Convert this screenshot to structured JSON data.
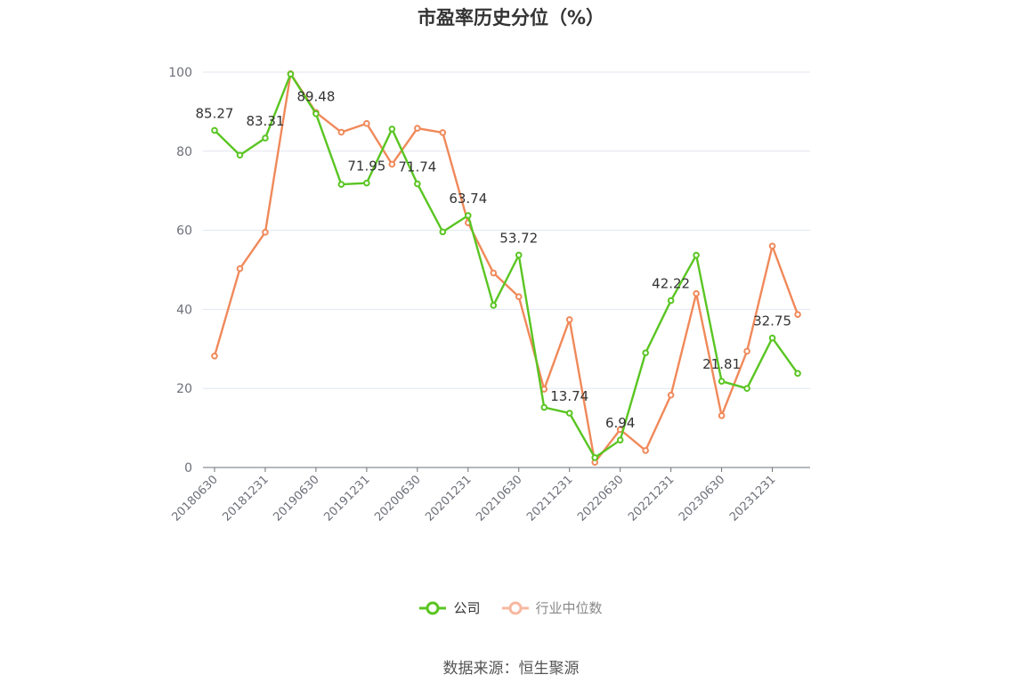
{
  "source": "数据来源：恒生聚源",
  "chart_data": {
    "type": "line",
    "title": "市盈率历史分位（%）",
    "xlabel": "",
    "ylabel": "",
    "ylim": [
      0,
      100
    ],
    "yticks": [
      0,
      20,
      40,
      60,
      80,
      100
    ],
    "x": [
      "20180630",
      "20180930",
      "20181231",
      "20190331",
      "20190630",
      "20190930",
      "20191231",
      "20200331",
      "20200630",
      "20200930",
      "20201231",
      "20210331",
      "20210630",
      "20210930",
      "20211231",
      "20220331",
      "20220630",
      "20220930",
      "20221231",
      "20230331",
      "20230630",
      "20230930",
      "20231231",
      "20240331"
    ],
    "xtick_labels": [
      "20180630",
      "20181231",
      "20190630",
      "20191231",
      "20200630",
      "20201231",
      "20210630",
      "20211231",
      "20220630",
      "20221231",
      "20230630",
      "20231231"
    ],
    "grid": true,
    "legend_position": "bottom",
    "series": [
      {
        "name": "公司",
        "color": "#5ac522",
        "values": [
          85.27,
          79.0,
          83.31,
          99.5,
          89.48,
          71.6,
          71.95,
          85.6,
          71.74,
          59.6,
          63.74,
          41.0,
          53.72,
          15.2,
          13.74,
          2.5,
          6.94,
          29.0,
          42.22,
          53.7,
          21.81,
          20.0,
          32.75,
          23.8
        ],
        "labels": [
          "85.27",
          "",
          "83.31",
          "",
          "89.48",
          "",
          "71.95",
          "",
          "71.74",
          "",
          "63.74",
          "",
          "53.72",
          "",
          "13.74",
          "",
          "6.94",
          "",
          "42.22",
          "",
          "21.81",
          "",
          "32.75",
          ""
        ]
      },
      {
        "name": "行业中位数",
        "color": "#f0895a",
        "values": [
          28.2,
          50.3,
          59.5,
          99.6,
          89.8,
          84.8,
          87.0,
          76.7,
          85.8,
          84.7,
          61.9,
          49.2,
          43.2,
          19.8,
          37.4,
          1.3,
          9.6,
          4.3,
          18.3,
          44.0,
          13.1,
          29.4,
          56.0,
          38.7
        ]
      }
    ]
  }
}
